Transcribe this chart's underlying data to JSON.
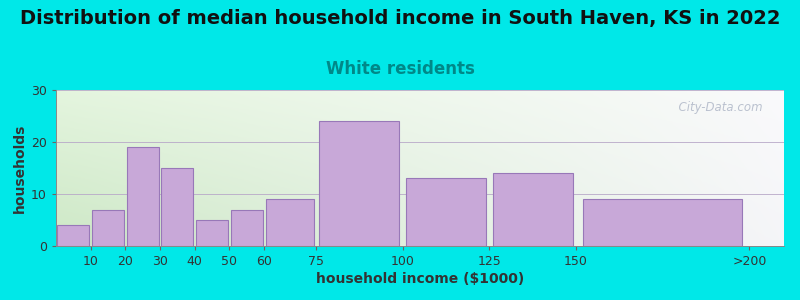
{
  "title": "Distribution of median household income in South Haven, KS in 2022",
  "subtitle": "White residents",
  "xlabel": "household income ($1000)",
  "ylabel": "households",
  "categories": [
    "10",
    "20",
    "30",
    "40",
    "50",
    "60",
    "75",
    "100",
    "125",
    "150",
    ">200"
  ],
  "bar_lefts": [
    0,
    10,
    20,
    30,
    40,
    50,
    60,
    75,
    100,
    125,
    150
  ],
  "bar_widths": [
    10,
    10,
    10,
    10,
    10,
    10,
    15,
    25,
    25,
    25,
    50
  ],
  "values": [
    4,
    7,
    19,
    15,
    5,
    7,
    9,
    24,
    13,
    14,
    9
  ],
  "bar_color": "#c8a8d8",
  "bar_edgecolor": "#9878b8",
  "background_color": "#00e8e8",
  "ylim": [
    0,
    30
  ],
  "yticks": [
    0,
    10,
    20,
    30
  ],
  "xlim": [
    0,
    210
  ],
  "xtick_positions": [
    10,
    20,
    30,
    40,
    50,
    60,
    75,
    100,
    125,
    150,
    200
  ],
  "xtick_labels": [
    "10",
    "20",
    "30",
    "40",
    "50",
    "60",
    "75",
    "100",
    "125",
    "150",
    ">200"
  ],
  "title_fontsize": 14,
  "subtitle_fontsize": 12,
  "subtitle_color": "#008888",
  "axis_label_fontsize": 10,
  "tick_fontsize": 9,
  "watermark": "  City-Data.com"
}
